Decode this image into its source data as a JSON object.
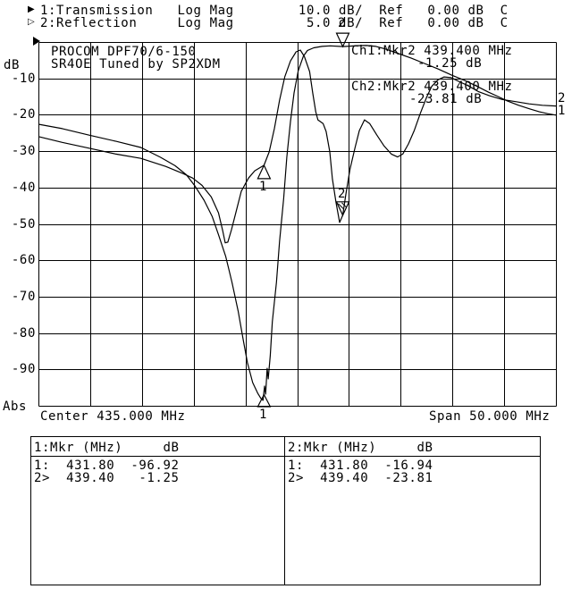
{
  "header": {
    "ch1_symbol": "▶",
    "ch2_symbol": "▷",
    "line1": "1:Transmission   Log Mag        10.0 dB/  Ref   0.00 dB  C",
    "line2": "2:Reflection     Log Mag         5.0 dB/  Ref   0.00 dB  C"
  },
  "plot": {
    "annotation_line1": "PROCOM DPF70/6-150",
    "annotation_line2": "SR4OE Tuned by SP2XDM",
    "readout_ch1_line1": "Ch1:Mkr2 439.400 MHz",
    "readout_ch1_line2": "-1.25 dB",
    "readout_ch2_line1": "Ch2:Mkr2 439.400 MHz",
    "readout_ch2_line2": "-23.81 dB",
    "y_axis_unit": "dB",
    "y_axis_bottom": "Abs",
    "y_ticks": [
      "-10",
      "-20",
      "-30",
      "-40",
      "-50",
      "-60",
      "-70",
      "-80",
      "-90"
    ],
    "x_center_label": "Center 435.000 MHz",
    "x_span_label": "Span 50.000 MHz",
    "bottom_marker_label": "1",
    "trace_end_labels": {
      "t1": "1",
      "t2": "2"
    }
  },
  "marker_table": {
    "panel1": {
      "header": "1:Mkr (MHz)     dB",
      "rows": [
        "1:  431.80  -96.92",
        "2>  439.40   -1.25"
      ]
    },
    "panel2": {
      "header": "2:Mkr (MHz)     dB",
      "rows": [
        "1:  431.80  -16.94",
        "2>  439.40  -23.81"
      ]
    }
  },
  "chart_data": {
    "type": "line",
    "title": "PROCOM DPF70/6-150 SR4OE Tuned by SP2XDM",
    "x_axis": {
      "center_mhz": 435.0,
      "span_mhz": 50.0,
      "min_mhz": 410.0,
      "max_mhz": 460.0,
      "divisions": 10
    },
    "y_axis": {
      "unit": "dB",
      "ref_db": 0.0,
      "ch1_db_per_div": 10.0,
      "ch2_db_per_div": 5.0,
      "divisions": 10,
      "bottom_label": "Abs"
    },
    "grid": true,
    "series": [
      {
        "name": "1: Transmission",
        "channel": 1,
        "scale_db_per_div": 10.0,
        "points_mhz_db": [
          [
            410.0,
            -22.6
          ],
          [
            412.3,
            -23.8
          ],
          [
            414.9,
            -25.6
          ],
          [
            417.5,
            -27.3
          ],
          [
            419.9,
            -29.0
          ],
          [
            421.8,
            -31.7
          ],
          [
            423.2,
            -34.0
          ],
          [
            424.3,
            -36.5
          ],
          [
            425.1,
            -39.5
          ],
          [
            426.0,
            -43.5
          ],
          [
            426.8,
            -48.0
          ],
          [
            427.4,
            -53.0
          ],
          [
            428.1,
            -59.0
          ],
          [
            428.7,
            -66.0
          ],
          [
            429.3,
            -74.0
          ],
          [
            429.8,
            -82.1
          ],
          [
            430.2,
            -88.2
          ],
          [
            430.7,
            -93.6
          ],
          [
            431.2,
            -96.6
          ],
          [
            431.5,
            -98.0
          ],
          [
            431.7,
            -98.5
          ],
          [
            431.85,
            -94.6
          ],
          [
            431.95,
            -96.8
          ],
          [
            432.1,
            -89.7
          ],
          [
            432.2,
            -92.6
          ],
          [
            432.4,
            -86.2
          ],
          [
            432.6,
            -76.9
          ],
          [
            433.0,
            -66.1
          ],
          [
            433.3,
            -54.8
          ],
          [
            433.7,
            -43.0
          ],
          [
            434.0,
            -31.7
          ],
          [
            434.35,
            -21.9
          ],
          [
            434.7,
            -14.0
          ],
          [
            435.1,
            -7.9
          ],
          [
            435.6,
            -3.9
          ],
          [
            436.0,
            -2.3
          ],
          [
            436.6,
            -1.6
          ],
          [
            437.4,
            -1.2
          ],
          [
            438.2,
            -1.05
          ],
          [
            439.4,
            -1.25
          ],
          [
            440.8,
            -1.0
          ],
          [
            441.7,
            -0.95
          ],
          [
            442.6,
            -1.2
          ],
          [
            443.5,
            -1.9
          ],
          [
            444.8,
            -3.2
          ],
          [
            446.0,
            -4.4
          ],
          [
            447.3,
            -5.9
          ],
          [
            448.6,
            -7.4
          ],
          [
            450.0,
            -9.2
          ],
          [
            451.2,
            -10.6
          ],
          [
            452.4,
            -12.2
          ],
          [
            453.5,
            -13.8
          ],
          [
            454.4,
            -15.0
          ],
          [
            455.3,
            -16.2
          ],
          [
            456.4,
            -17.4
          ],
          [
            457.5,
            -18.4
          ],
          [
            458.4,
            -19.2
          ],
          [
            459.2,
            -19.7
          ],
          [
            460.0,
            -20.1
          ]
        ]
      },
      {
        "name": "2: Reflection",
        "channel": 2,
        "scale_db_per_div": 5.0,
        "points_mhz_db": [
          [
            410.0,
            -13.0
          ],
          [
            412.3,
            -13.8
          ],
          [
            414.9,
            -14.6
          ],
          [
            417.5,
            -15.4
          ],
          [
            419.9,
            -16.0
          ],
          [
            422.3,
            -17.1
          ],
          [
            424.0,
            -18.1
          ],
          [
            424.9,
            -18.7
          ],
          [
            425.8,
            -19.7
          ],
          [
            426.7,
            -21.3
          ],
          [
            427.4,
            -23.5
          ],
          [
            427.8,
            -25.9
          ],
          [
            428.05,
            -27.6
          ],
          [
            428.3,
            -27.5
          ],
          [
            428.65,
            -25.8
          ],
          [
            429.1,
            -23.3
          ],
          [
            429.6,
            -20.5
          ],
          [
            430.3,
            -18.7
          ],
          [
            430.9,
            -17.7
          ],
          [
            431.8,
            -16.94
          ],
          [
            432.3,
            -15.1
          ],
          [
            432.8,
            -11.9
          ],
          [
            433.3,
            -8.0
          ],
          [
            433.8,
            -4.8
          ],
          [
            434.35,
            -2.6
          ],
          [
            434.9,
            -1.35
          ],
          [
            435.3,
            -1.1
          ],
          [
            435.7,
            -2.0
          ],
          [
            436.2,
            -4.05
          ],
          [
            436.5,
            -7.0
          ],
          [
            436.8,
            -9.6
          ],
          [
            437.0,
            -10.7
          ],
          [
            437.5,
            -11.2
          ],
          [
            437.8,
            -12.3
          ],
          [
            438.15,
            -15.1
          ],
          [
            438.4,
            -18.8
          ],
          [
            438.75,
            -22.0
          ],
          [
            439.1,
            -24.8
          ],
          [
            439.4,
            -23.81
          ],
          [
            439.7,
            -21.0
          ],
          [
            440.1,
            -17.5
          ],
          [
            440.6,
            -14.5
          ],
          [
            441.0,
            -12.2
          ],
          [
            441.5,
            -10.7
          ],
          [
            442.0,
            -11.2
          ],
          [
            442.7,
            -12.8
          ],
          [
            443.4,
            -14.3
          ],
          [
            444.1,
            -15.4
          ],
          [
            444.7,
            -15.8
          ],
          [
            445.2,
            -15.4
          ],
          [
            445.75,
            -14.0
          ],
          [
            446.3,
            -12.2
          ],
          [
            446.9,
            -9.8
          ],
          [
            447.5,
            -7.6
          ],
          [
            448.0,
            -6.1
          ],
          [
            448.6,
            -5.2
          ],
          [
            449.2,
            -4.8
          ],
          [
            449.9,
            -4.9
          ],
          [
            450.6,
            -5.4
          ],
          [
            451.5,
            -6.0
          ],
          [
            452.5,
            -6.8
          ],
          [
            453.6,
            -7.4
          ],
          [
            454.8,
            -7.9
          ],
          [
            456.1,
            -8.2
          ],
          [
            457.4,
            -8.5
          ],
          [
            458.7,
            -8.7
          ],
          [
            460.0,
            -8.8
          ]
        ]
      }
    ],
    "markers": [
      {
        "label": "2",
        "channel": 1,
        "mhz": 439.4,
        "db": -1.25,
        "dir": "down"
      },
      {
        "label": "2",
        "channel": 2,
        "mhz": 439.4,
        "db": -23.81,
        "dir": "down",
        "hatched": true
      },
      {
        "label": "1",
        "channel": 2,
        "mhz": 431.8,
        "db": -16.94,
        "dir": "up"
      },
      {
        "label": "1",
        "channel": 1,
        "mhz": 431.8,
        "db": -96.92,
        "dir": "up",
        "base_at_axis": true
      }
    ],
    "colors": {
      "foreground": "#000000",
      "background": "#ffffff"
    }
  }
}
